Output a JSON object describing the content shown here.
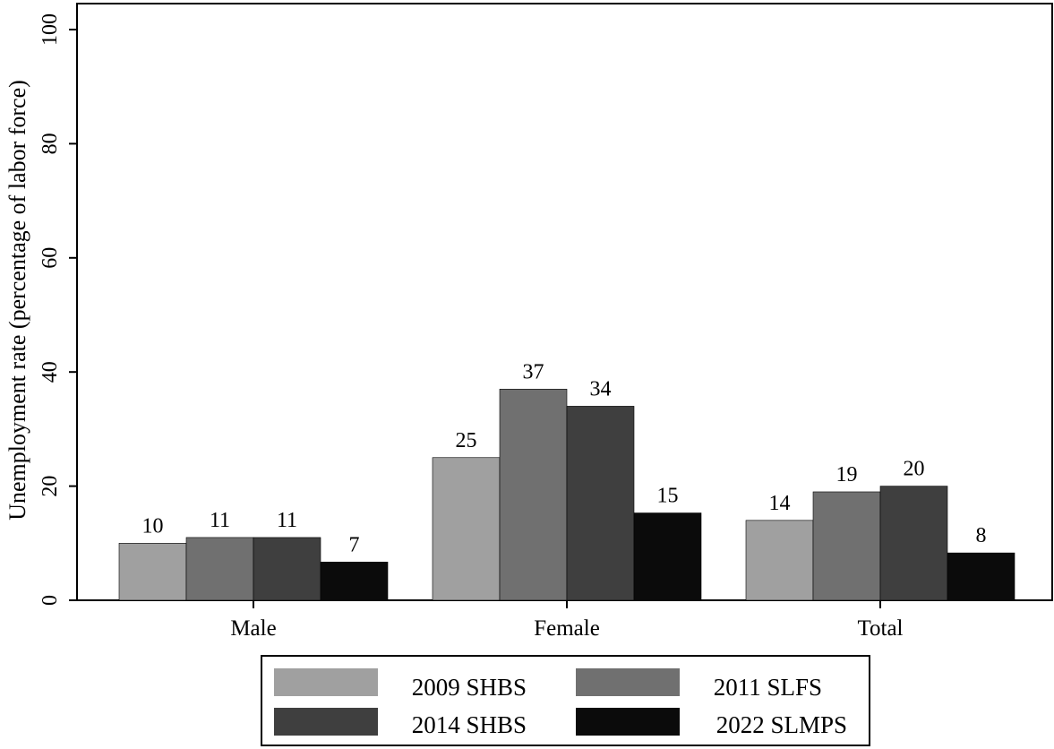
{
  "chart_data": {
    "type": "bar",
    "title": "",
    "xlabel": "",
    "ylabel": "Unemployment rate (percentage of labor force)",
    "ylim": [
      0,
      100
    ],
    "yticks": [
      0,
      20,
      40,
      60,
      80,
      100
    ],
    "categories": [
      "Male",
      "Female",
      "Total"
    ],
    "series": [
      {
        "name": "2009 SHBS",
        "values": [
          10,
          25,
          14
        ],
        "labels": [
          "10",
          "25",
          "14"
        ],
        "color": "#a0a0a0"
      },
      {
        "name": "2011 SLFS",
        "values": [
          11,
          37,
          19
        ],
        "labels": [
          "11",
          "37",
          "19"
        ],
        "color": "#707070"
      },
      {
        "name": "2014 SHBS",
        "values": [
          11,
          34,
          20
        ],
        "labels": [
          "11",
          "34",
          "20"
        ],
        "color": "#3f3f3f"
      },
      {
        "name": "2022 SLMPS",
        "values": [
          6.7,
          15.3,
          8.3
        ],
        "labels": [
          "7",
          "15",
          "8"
        ],
        "color": "#0b0b0b"
      }
    ],
    "grid": false,
    "legend": "bottom"
  }
}
